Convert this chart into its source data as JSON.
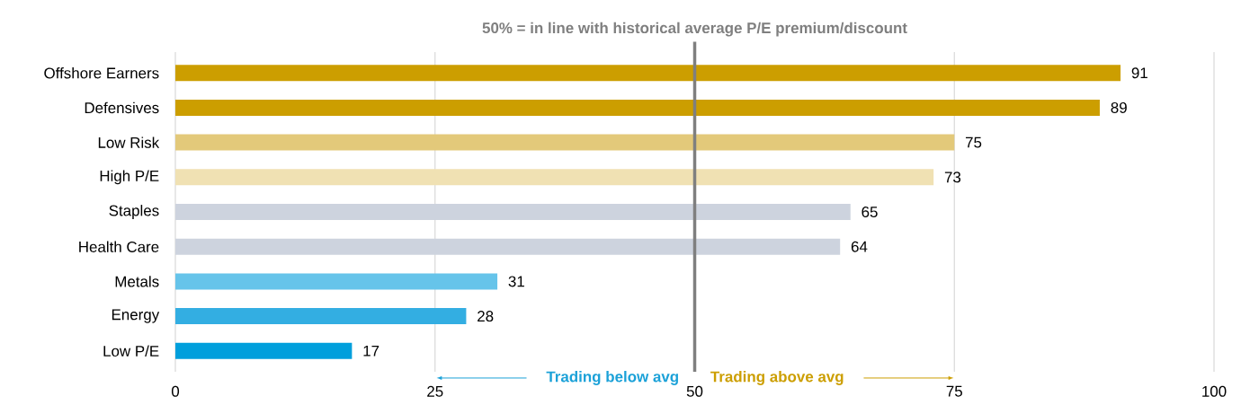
{
  "chart_data": {
    "type": "bar",
    "orientation": "horizontal",
    "categories": [
      "Offshore Earners",
      "Defensives",
      "Low Risk",
      "High P/E",
      "Staples",
      "Health Care",
      "Metals",
      "Energy",
      "Low P/E"
    ],
    "values": [
      91,
      89,
      75,
      73,
      65,
      64,
      31,
      28,
      17
    ],
    "colors": [
      "#cc9e00",
      "#cc9e00",
      "#e3c97a",
      "#f0e1b3",
      "#cdd3de",
      "#cdd3de",
      "#66c4ea",
      "#33aee2",
      "#009fdc"
    ],
    "xlim": [
      0,
      100
    ],
    "xticks": [
      0,
      25,
      50,
      75,
      100
    ],
    "grid": "x",
    "data_labels": true,
    "ref_lines": [
      {
        "axis": "x",
        "value": 50,
        "label": "50% = in line with historical average P/E premium/discount",
        "color": "#7f7f7f"
      }
    ],
    "annotations": [
      "Trading below avg",
      "Trading above avg"
    ]
  }
}
